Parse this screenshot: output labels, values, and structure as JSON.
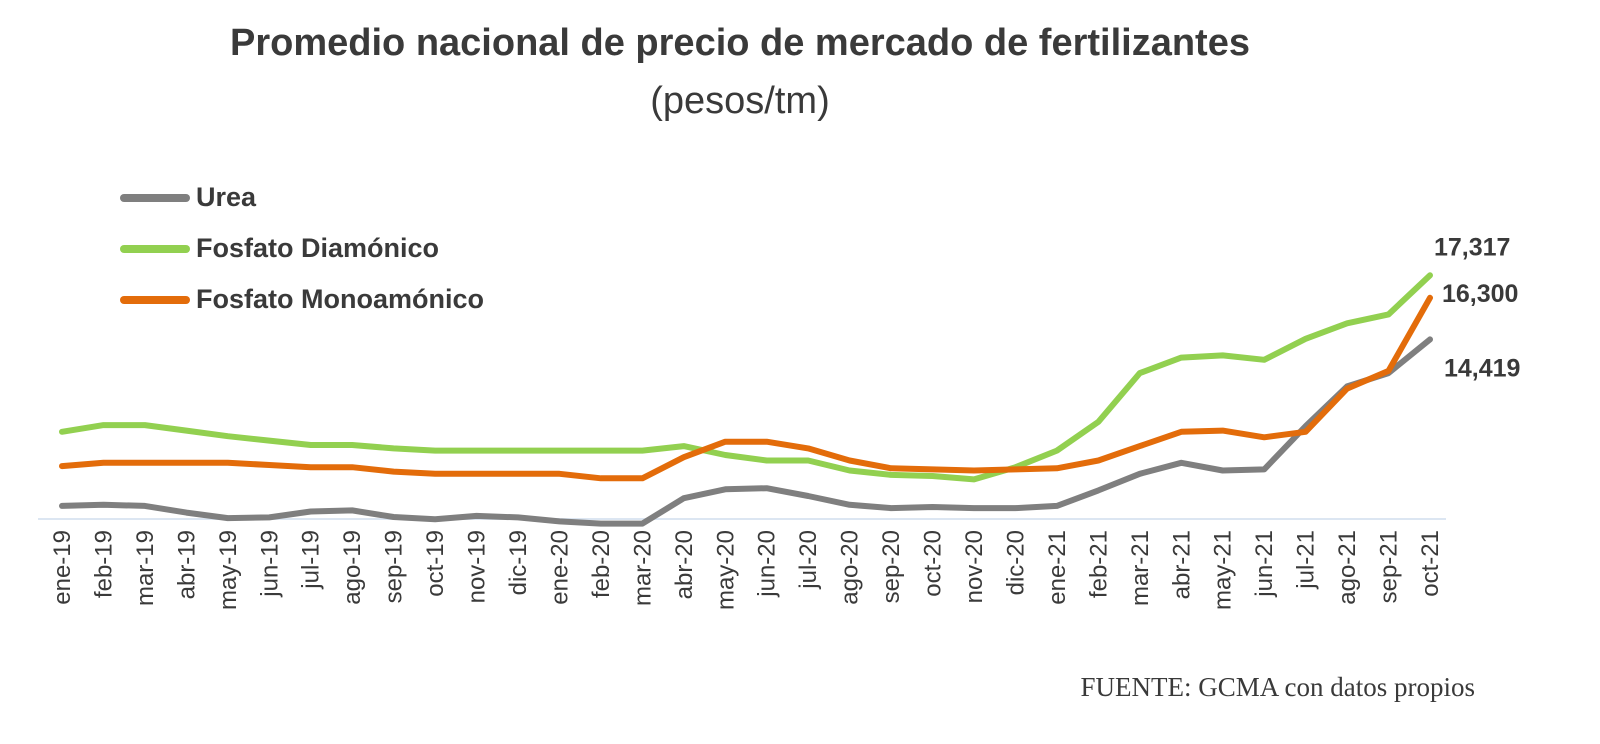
{
  "chart_data": {
    "type": "line",
    "title": "Promedio nacional de precio de mercado de fertilizantes",
    "subtitle": "(pesos/tm)",
    "source": "FUENTE: GCMA con datos propios",
    "legend_position": "top-left",
    "grid": false,
    "ylim": [
      5000,
      19000
    ],
    "categories": [
      "ene-19",
      "feb-19",
      "mar-19",
      "abr-19",
      "may-19",
      "jun-19",
      "jul-19",
      "ago-19",
      "sep-19",
      "oct-19",
      "nov-19",
      "dic-19",
      "ene-20",
      "feb-20",
      "mar-20",
      "abr-20",
      "may-20",
      "jun-20",
      "jul-20",
      "ago-20",
      "sep-20",
      "oct-20",
      "nov-20",
      "dic-20",
      "ene-21",
      "feb-21",
      "mar-21",
      "abr-21",
      "may-21",
      "jun-21",
      "jul-21",
      "ago-21",
      "sep-21",
      "oct-21"
    ],
    "series": [
      {
        "name": "Urea",
        "color": "#7f7f7f",
        "values": [
          6900,
          6950,
          6900,
          6600,
          6350,
          6380,
          6650,
          6700,
          6400,
          6300,
          6450,
          6380,
          6200,
          6100,
          6100,
          7250,
          7650,
          7700,
          7350,
          6950,
          6800,
          6850,
          6800,
          6800,
          6900,
          7600,
          8350,
          8850,
          8500,
          8550,
          10500,
          12300,
          12900,
          14419
        ],
        "end_label": "14,419"
      },
      {
        "name": "Fosfato Diamónico",
        "color": "#92d050",
        "values": [
          10250,
          10550,
          10550,
          10300,
          10050,
          9850,
          9650,
          9650,
          9500,
          9400,
          9400,
          9400,
          9400,
          9400,
          9400,
          9600,
          9200,
          8950,
          8950,
          8500,
          8300,
          8250,
          8100,
          8650,
          9400,
          10700,
          12900,
          13600,
          13700,
          13500,
          14450,
          15150,
          15550,
          17317
        ],
        "end_label": "17,317"
      },
      {
        "name": "Fosfato Monoamónico",
        "color": "#e36c0a",
        "values": [
          8700,
          8850,
          8850,
          8850,
          8850,
          8750,
          8650,
          8650,
          8450,
          8350,
          8350,
          8350,
          8350,
          8150,
          8150,
          9100,
          9800,
          9800,
          9500,
          8950,
          8600,
          8550,
          8500,
          8550,
          8600,
          8950,
          9600,
          10250,
          10300,
          10000,
          10250,
          12200,
          13000,
          16300
        ],
        "end_label": "16,300"
      }
    ]
  }
}
